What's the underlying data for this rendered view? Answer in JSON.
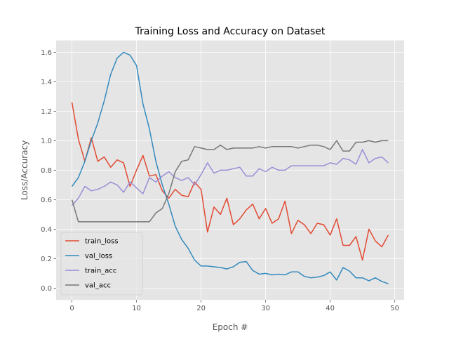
{
  "chart_data": {
    "type": "line",
    "title": "Training Loss and Accuracy on Dataset",
    "xlabel": "Epoch #",
    "ylabel": "Loss/Accuracy",
    "xlim": [
      -2.45,
      51.45
    ],
    "ylim": [
      -0.08,
      1.68
    ],
    "xticks": [
      0,
      10,
      20,
      30,
      40,
      50
    ],
    "yticks": [
      0.0,
      0.2,
      0.4,
      0.6,
      0.8,
      1.0,
      1.2,
      1.4,
      1.6
    ],
    "ytick_labels": [
      "0.0",
      "0.2",
      "0.4",
      "0.6",
      "0.8",
      "1.0",
      "1.2",
      "1.4",
      "1.6"
    ],
    "grid": true,
    "legend_position": "lower-left",
    "x": [
      0,
      1,
      2,
      3,
      4,
      5,
      6,
      7,
      8,
      9,
      10,
      11,
      12,
      13,
      14,
      15,
      16,
      17,
      18,
      19,
      20,
      21,
      22,
      23,
      24,
      25,
      26,
      27,
      28,
      29,
      30,
      31,
      32,
      33,
      34,
      35,
      36,
      37,
      38,
      39,
      40,
      41,
      42,
      43,
      44,
      45,
      46,
      47,
      48,
      49
    ],
    "series": [
      {
        "name": "train_loss",
        "color": "#e24a33",
        "values": [
          1.26,
          1.01,
          0.86,
          1.02,
          0.86,
          0.89,
          0.82,
          0.87,
          0.85,
          0.69,
          0.8,
          0.9,
          0.76,
          0.77,
          0.66,
          0.61,
          0.67,
          0.63,
          0.62,
          0.72,
          0.67,
          0.38,
          0.55,
          0.5,
          0.61,
          0.43,
          0.47,
          0.53,
          0.57,
          0.47,
          0.54,
          0.44,
          0.47,
          0.59,
          0.37,
          0.46,
          0.43,
          0.37,
          0.44,
          0.43,
          0.36,
          0.47,
          0.29,
          0.29,
          0.35,
          0.19,
          0.4,
          0.32,
          0.28,
          0.36
        ]
      },
      {
        "name": "val_loss",
        "color": "#348abd",
        "values": [
          0.69,
          0.75,
          0.86,
          1.0,
          1.12,
          1.27,
          1.45,
          1.56,
          1.6,
          1.58,
          1.51,
          1.25,
          1.08,
          0.86,
          0.7,
          0.57,
          0.42,
          0.33,
          0.27,
          0.19,
          0.15,
          0.15,
          0.145,
          0.14,
          0.13,
          0.145,
          0.175,
          0.18,
          0.12,
          0.095,
          0.1,
          0.09,
          0.095,
          0.09,
          0.11,
          0.11,
          0.08,
          0.07,
          0.075,
          0.085,
          0.11,
          0.055,
          0.14,
          0.115,
          0.07,
          0.07,
          0.05,
          0.07,
          0.045,
          0.03
        ]
      },
      {
        "name": "train_acc",
        "color": "#988ed5",
        "values": [
          0.56,
          0.61,
          0.69,
          0.66,
          0.67,
          0.69,
          0.72,
          0.7,
          0.65,
          0.72,
          0.68,
          0.64,
          0.75,
          0.72,
          0.76,
          0.79,
          0.75,
          0.73,
          0.75,
          0.7,
          0.77,
          0.85,
          0.78,
          0.8,
          0.8,
          0.81,
          0.82,
          0.76,
          0.76,
          0.81,
          0.79,
          0.82,
          0.8,
          0.8,
          0.83,
          0.83,
          0.83,
          0.83,
          0.83,
          0.83,
          0.85,
          0.84,
          0.88,
          0.87,
          0.84,
          0.94,
          0.85,
          0.88,
          0.89,
          0.85
        ]
      },
      {
        "name": "val_acc",
        "color": "#777777",
        "values": [
          0.6,
          0.45,
          0.45,
          0.45,
          0.45,
          0.45,
          0.45,
          0.45,
          0.45,
          0.45,
          0.45,
          0.45,
          0.45,
          0.51,
          0.54,
          0.64,
          0.79,
          0.86,
          0.87,
          0.96,
          0.95,
          0.94,
          0.94,
          0.97,
          0.94,
          0.95,
          0.95,
          0.95,
          0.95,
          0.96,
          0.95,
          0.96,
          0.96,
          0.96,
          0.96,
          0.95,
          0.96,
          0.97,
          0.97,
          0.96,
          0.94,
          1.0,
          0.93,
          0.93,
          0.99,
          0.99,
          1.0,
          0.99,
          1.0,
          1.0
        ]
      }
    ]
  }
}
